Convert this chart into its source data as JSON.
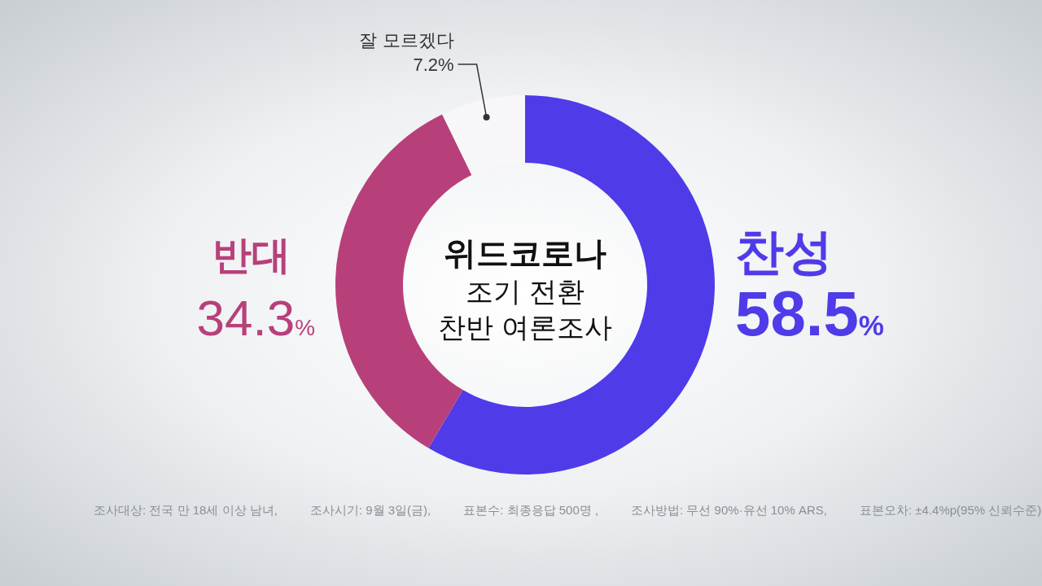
{
  "chart_data": {
    "type": "donut",
    "title": "위드코로나",
    "subtitle": "조기 전환\n찬반 여론조사",
    "categories": [
      "찬성",
      "반대",
      "잘 모르겠다"
    ],
    "values": [
      58.5,
      34.3,
      7.2
    ],
    "colors": [
      "#4f3be8",
      "#b8407a",
      "#f7f7f9"
    ],
    "value_labels": [
      "58.5%",
      "34.3%",
      "7.2%"
    ],
    "annotations": [
      "조사대상: 전국 만 18세 이상 남녀,",
      "조사시기: 9월 3일(금),",
      "표본수: 최종응답 500명 ,",
      "조사방법: 무선 90%·유선 10% ARS,",
      "표본오차: ±4.4%p(95% 신뢰수준)"
    ]
  }
}
